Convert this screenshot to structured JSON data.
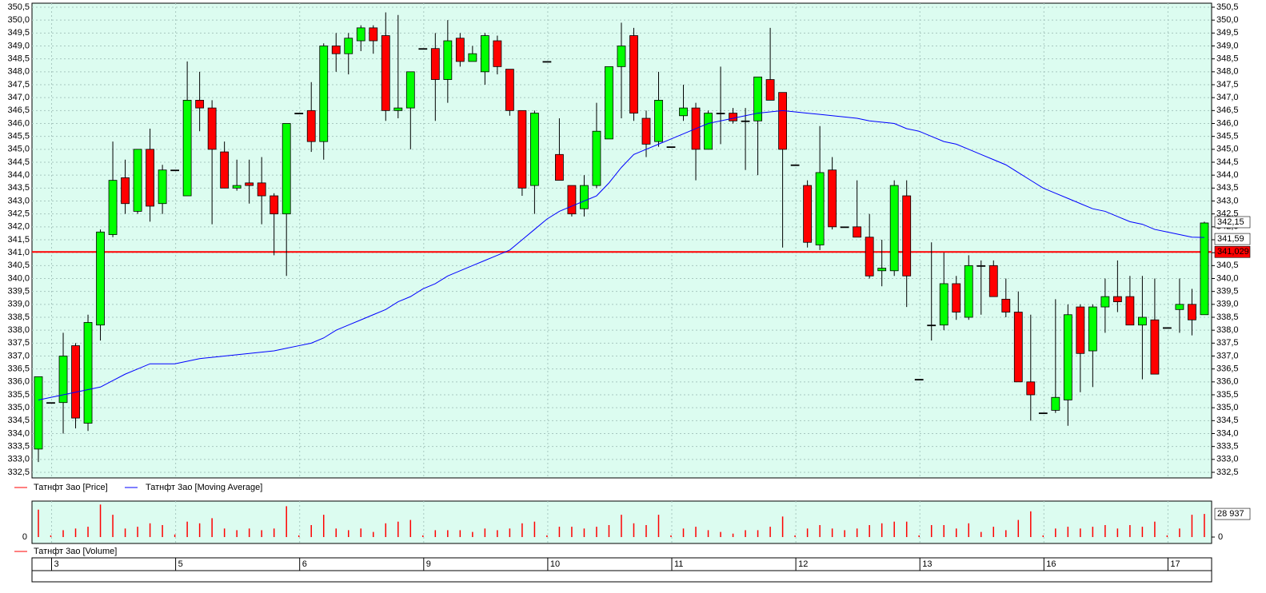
{
  "chart_data": {
    "type": "candlestick",
    "series": [
      {
        "name": "Татнфт 3ао [Price]",
        "color": "#ff0000",
        "up_color": "#00ff00",
        "down_color": "#ff0000",
        "open": [
          333.4,
          335.2,
          335.2,
          337.4,
          334.4,
          338.2,
          341.7,
          343.9,
          342.6,
          345.0,
          342.9,
          344.2,
          343.2,
          346.9,
          346.6,
          344.9,
          343.5,
          343.7,
          343.7,
          343.2,
          342.5,
          346.4,
          346.5,
          345.3,
          349.0,
          348.7,
          349.2,
          349.7,
          349.4,
          346.5,
          346.6,
          348.9,
          348.9,
          347.7,
          349.3,
          348.4,
          348.0,
          349.2,
          348.1,
          346.5,
          343.6,
          348.4,
          344.8,
          343.6,
          342.7,
          343.6,
          345.4,
          348.2,
          349.4,
          346.2,
          345.3,
          345.1,
          346.3,
          346.6,
          345.0,
          346.4,
          346.4,
          346.1,
          346.1,
          347.7,
          347.2,
          344.4,
          343.6,
          341.3,
          344.2,
          342.0,
          342.0,
          341.6,
          340.3,
          340.3,
          343.2,
          336.1,
          338.2,
          338.2,
          339.8,
          338.5,
          340.5,
          340.5,
          339.2,
          338.7,
          336.0,
          334.8,
          334.9,
          335.3,
          338.9,
          337.2,
          338.9,
          339.3,
          339.3,
          338.2,
          338.4,
          338.1,
          338.8,
          339.0,
          338.6
        ],
        "high": [
          336.2,
          335.2,
          337.9,
          337.5,
          338.6,
          341.9,
          345.3,
          344.6,
          345.0,
          345.8,
          344.4,
          344.2,
          348.4,
          348.0,
          346.9,
          345.3,
          344.6,
          344.6,
          344.7,
          343.3,
          346.0,
          346.4,
          347.6,
          349.1,
          349.5,
          349.5,
          349.8,
          349.8,
          350.3,
          350.2,
          348.0,
          348.9,
          349.5,
          350.0,
          349.5,
          349.0,
          349.5,
          349.4,
          348.1,
          346.5,
          346.5,
          348.4,
          346.2,
          343.6,
          344.0,
          346.8,
          348.2,
          349.9,
          349.7,
          346.5,
          348.0,
          345.1,
          347.5,
          346.8,
          346.5,
          348.2,
          346.6,
          346.6,
          347.8,
          349.7,
          347.2,
          344.4,
          343.8,
          345.9,
          344.7,
          342.0,
          343.8,
          342.5,
          341.5,
          343.8,
          343.8,
          336.1,
          341.4,
          341.0,
          340.1,
          340.9,
          340.7,
          340.7,
          340.0,
          339.5,
          338.6,
          334.8,
          339.2,
          339.0,
          339.0,
          339.0,
          340.0,
          340.7,
          340.1,
          340.1,
          340.0,
          338.1,
          340.0,
          339.6,
          342.2
        ],
        "low": [
          332.9,
          335.2,
          334.0,
          334.2,
          334.1,
          337.6,
          341.6,
          342.5,
          342.5,
          342.2,
          342.5,
          344.2,
          343.2,
          345.7,
          342.1,
          343.5,
          343.4,
          342.9,
          342.1,
          340.9,
          340.1,
          346.4,
          344.9,
          344.6,
          348.0,
          347.9,
          348.8,
          348.7,
          346.1,
          346.2,
          345.0,
          348.9,
          346.1,
          346.8,
          348.2,
          348.4,
          347.5,
          347.9,
          346.3,
          343.2,
          342.5,
          348.4,
          343.8,
          342.4,
          342.4,
          343.5,
          345.4,
          346.2,
          346.1,
          344.7,
          345.1,
          345.1,
          346.1,
          343.8,
          345.0,
          345.2,
          346.0,
          344.2,
          344.0,
          346.9,
          341.2,
          344.4,
          341.2,
          341.1,
          341.9,
          342.0,
          341.6,
          340.0,
          339.7,
          340.1,
          338.9,
          336.1,
          337.6,
          338.0,
          338.4,
          338.4,
          338.6,
          339.3,
          338.5,
          336.0,
          334.5,
          334.8,
          334.8,
          334.3,
          335.6,
          335.8,
          337.9,
          338.7,
          338.2,
          336.1,
          336.3,
          338.1,
          337.9,
          337.8,
          338.6
        ],
        "close": [
          336.2,
          335.2,
          337.0,
          334.6,
          338.3,
          341.8,
          343.8,
          342.9,
          345.0,
          342.8,
          344.2,
          344.2,
          346.9,
          346.6,
          345.0,
          343.5,
          343.6,
          343.6,
          343.2,
          342.5,
          346.0,
          346.4,
          345.3,
          349.0,
          348.7,
          349.3,
          349.7,
          349.2,
          346.5,
          346.6,
          348.0,
          348.9,
          347.7,
          349.2,
          348.4,
          348.7,
          349.4,
          348.2,
          346.5,
          343.5,
          346.4,
          348.4,
          343.8,
          342.5,
          343.6,
          345.7,
          348.2,
          349.0,
          346.4,
          345.2,
          346.9,
          345.1,
          346.6,
          345.0,
          346.4,
          346.4,
          346.1,
          346.1,
          347.8,
          346.9,
          345.0,
          344.4,
          341.4,
          344.1,
          342.0,
          342.0,
          341.6,
          340.1,
          340.4,
          343.6,
          340.1,
          336.1,
          338.2,
          339.8,
          338.7,
          340.5,
          340.5,
          339.3,
          338.7,
          336.0,
          335.5,
          334.8,
          335.4,
          338.6,
          337.1,
          338.9,
          339.3,
          339.1,
          338.2,
          338.5,
          336.3,
          338.1,
          339.0,
          338.4,
          342.15
        ],
        "last_label": "342,15"
      },
      {
        "name": "Татнфт 3ао [Moving Average]",
        "color": "#0000ff",
        "values": [
          335.3,
          335.4,
          335.5,
          335.6,
          335.7,
          335.8,
          336.05,
          336.3,
          336.5,
          336.7,
          336.7,
          336.7,
          336.8,
          336.9,
          336.95,
          337.0,
          337.05,
          337.1,
          337.15,
          337.2,
          337.3,
          337.4,
          337.5,
          337.7,
          338.0,
          338.2,
          338.4,
          338.6,
          338.8,
          339.1,
          339.3,
          339.6,
          339.8,
          340.1,
          340.3,
          340.5,
          340.7,
          340.9,
          341.1,
          341.5,
          341.9,
          342.3,
          342.6,
          342.8,
          343.0,
          343.2,
          343.7,
          344.3,
          344.8,
          345.0,
          345.2,
          345.4,
          345.6,
          345.8,
          346.0,
          346.1,
          346.2,
          346.3,
          346.4,
          346.45,
          346.5,
          346.45,
          346.4,
          346.35,
          346.3,
          346.25,
          346.2,
          346.1,
          346.05,
          346.0,
          345.8,
          345.7,
          345.5,
          345.3,
          345.2,
          345.0,
          344.8,
          344.6,
          344.4,
          344.1,
          343.8,
          343.5,
          343.3,
          343.1,
          342.9,
          342.7,
          342.6,
          342.4,
          342.2,
          342.1,
          341.9,
          341.8,
          341.7,
          341.6,
          341.59
        ],
        "last_label": "341,59"
      }
    ],
    "reference_line": {
      "value": 341.029,
      "label": "341,029",
      "color": "#ff0000"
    },
    "ylim": [
      332.5,
      350.5
    ],
    "yticks": [
      {
        "value": 332.5,
        "label": "332,5"
      },
      {
        "value": 333,
        "label": "333,0"
      },
      {
        "value": 333.5,
        "label": "333,5"
      },
      {
        "value": 334,
        "label": "334,0"
      },
      {
        "value": 334.5,
        "label": "334,5"
      },
      {
        "value": 335,
        "label": "335,0"
      },
      {
        "value": 335.5,
        "label": "335,5"
      },
      {
        "value": 336,
        "label": "336,0"
      },
      {
        "value": 336.5,
        "label": "336,5"
      },
      {
        "value": 337,
        "label": "337,0"
      },
      {
        "value": 337.5,
        "label": "337,5"
      },
      {
        "value": 338,
        "label": "338,0"
      },
      {
        "value": 338.5,
        "label": "338,5"
      },
      {
        "value": 339,
        "label": "339,0"
      },
      {
        "value": 339.5,
        "label": "339,5"
      },
      {
        "value": 340,
        "label": "340,0"
      },
      {
        "value": 340.5,
        "label": "340,5"
      },
      {
        "value": 341,
        "label": "341,0"
      },
      {
        "value": 341.5,
        "label": "341,5"
      },
      {
        "value": 342,
        "label": "342,0"
      },
      {
        "value": 342.5,
        "label": "342,5"
      },
      {
        "value": 343,
        "label": "343,0"
      },
      {
        "value": 343.5,
        "label": "343,5"
      },
      {
        "value": 344,
        "label": "344,0"
      },
      {
        "value": 344.5,
        "label": "344,5"
      },
      {
        "value": 345,
        "label": "345,0"
      },
      {
        "value": 345.5,
        "label": "345,5"
      },
      {
        "value": 346,
        "label": "346,0"
      },
      {
        "value": 346.5,
        "label": "346,5"
      },
      {
        "value": 347,
        "label": "347,0"
      },
      {
        "value": 347.5,
        "label": "347,5"
      },
      {
        "value": 348,
        "label": "348,0"
      },
      {
        "value": 348.5,
        "label": "348,5"
      },
      {
        "value": 349,
        "label": "349,0"
      },
      {
        "value": 349.5,
        "label": "349,5"
      },
      {
        "value": 350,
        "label": "350,0"
      },
      {
        "value": 350.5,
        "label": "350,5"
      }
    ],
    "volume": {
      "name": "Татнфт 3ао [Volume]",
      "color": "#ff0000",
      "ylim": [
        0,
        45000
      ],
      "yticks": [
        0
      ],
      "last_label": "28 937",
      "values": [
        34300,
        2100,
        8600,
        10700,
        12900,
        40700,
        27900,
        10700,
        12900,
        17200,
        15000,
        3200,
        19300,
        17200,
        23600,
        10700,
        8600,
        10700,
        8600,
        10700,
        38600,
        2100,
        15000,
        27900,
        10700,
        8600,
        10700,
        6400,
        17200,
        19300,
        21400,
        2100,
        8600,
        8600,
        8600,
        6400,
        10700,
        8600,
        10700,
        17200,
        19300,
        2100,
        12900,
        12900,
        10700,
        12900,
        15000,
        27900,
        17200,
        15000,
        27900,
        2100,
        10700,
        12900,
        8600,
        6400,
        4300,
        8600,
        8600,
        12900,
        25700,
        2100,
        10700,
        15000,
        10700,
        8600,
        10700,
        15000,
        17200,
        19300,
        19300,
        2100,
        15000,
        15000,
        10700,
        17200,
        6400,
        12900,
        8600,
        21400,
        32200,
        2100,
        10700,
        12900,
        10700,
        12900,
        15000,
        10700,
        15000,
        12900,
        19300,
        2100,
        10700,
        27900,
        28937
      ]
    },
    "day_labels": [
      "3",
      "5",
      "6",
      "9",
      "10",
      "11",
      "12",
      "13",
      "16",
      "17"
    ],
    "grid": true
  }
}
